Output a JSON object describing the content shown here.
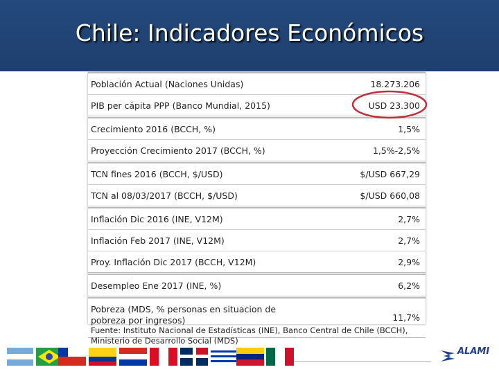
{
  "header": {
    "title": "Chile: Indicadores Económicos"
  },
  "table": {
    "groups": [
      [
        {
          "label": [
            "Población Actual (Naciones Unidas)"
          ],
          "value": "18.273.206"
        },
        {
          "label": [
            "PIB per cápita PPP (Banco Mundial, 2015)"
          ],
          "value": "USD 23.300"
        }
      ],
      [
        {
          "label": [
            "Crecimiento 2016 (BCCH, %)"
          ],
          "value": "1,5%"
        },
        {
          "label": [
            "Proyección  Crecimiento 2017 (BCCH, %)"
          ],
          "value": "1,5%-2,5%"
        }
      ],
      [
        {
          "label": [
            "TCN fines 2016 (BCCH, $/USD)"
          ],
          "value": "$/USD 667,29"
        },
        {
          "label": [
            "TCN al 08/03/2017 (BCCH, $/USD)"
          ],
          "value": "$/USD 660,08"
        }
      ],
      [
        {
          "label": [
            "Inflación Dic 2016 (INE, V12M)"
          ],
          "value": "2,7%"
        },
        {
          "label": [
            "Inflación Feb 2017 (INE, V12M)"
          ],
          "value": "2,7%"
        },
        {
          "label": [
            "Proy. Inflación Dic 2017 (BCCH, V12M)"
          ],
          "value": "2,9%"
        }
      ],
      [
        {
          "label": [
            "Desempleo Ene 2017 (INE, %)"
          ],
          "value": "6,2%"
        }
      ],
      [
        {
          "label": [
            "Pobreza (MDS, % personas en situacion de",
            "pobreza por ingresos)"
          ],
          "value": "11,7%"
        }
      ]
    ]
  },
  "footer": {
    "lines": [
      "Fuente: Instituto Nacional de Estadísticas (INE), Banco Central de Chile (BCCH),",
      "Ministerio de Desarrollo Social (MDS)"
    ]
  },
  "logo": {
    "text": "ALAMI"
  }
}
